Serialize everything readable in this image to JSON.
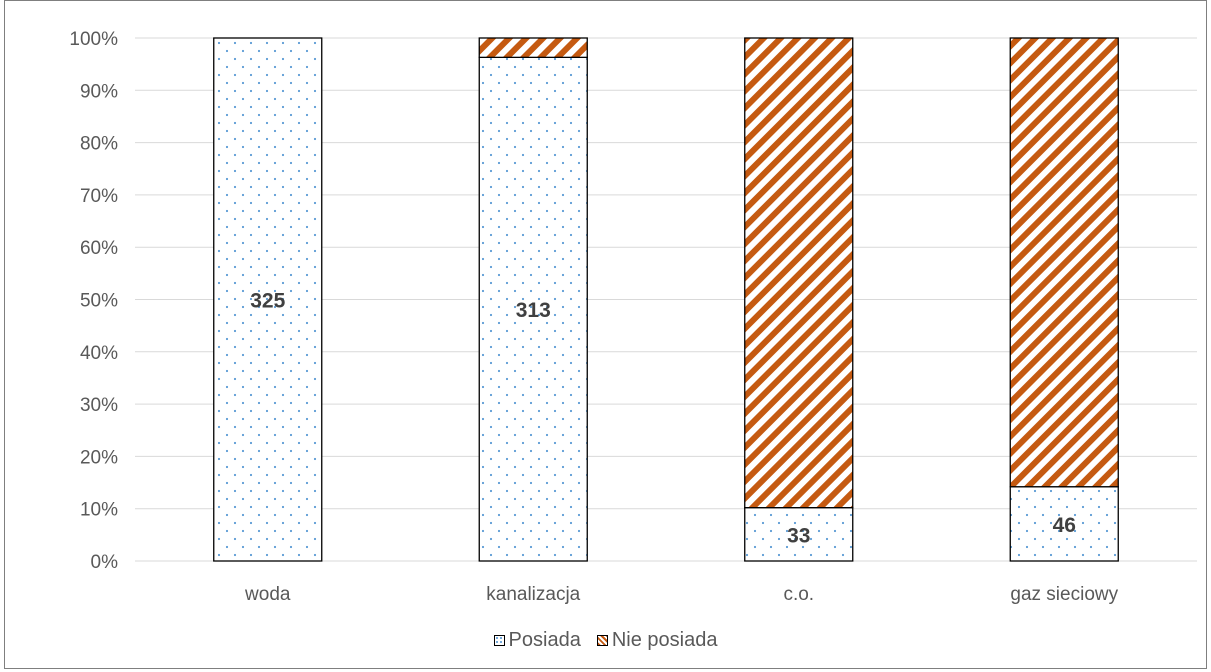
{
  "chart_data": {
    "type": "bar",
    "stacked": "percent",
    "categories": [
      "woda",
      "kanalizacja",
      "c.o.",
      "gaz sieciowy"
    ],
    "series": [
      {
        "name": "Posiada",
        "values": [
          325,
          313,
          33,
          46
        ],
        "share_pct": [
          100,
          96.3,
          10.2,
          14.2
        ],
        "data_labels": [
          "325",
          "313",
          "33",
          "46"
        ],
        "pattern": "dotted",
        "color": "#5b9bd5"
      },
      {
        "name": "Nie posiada",
        "share_pct": [
          0,
          3.7,
          89.8,
          85.8
        ],
        "pattern": "diagonal-stripes",
        "color": "#c55a11"
      }
    ],
    "y_ticks": [
      "0%",
      "10%",
      "20%",
      "30%",
      "40%",
      "50%",
      "60%",
      "70%",
      "80%",
      "90%",
      "100%"
    ],
    "ylim": [
      0,
      100
    ],
    "grid": true,
    "legend_position": "bottom",
    "title": "",
    "xlabel": "",
    "ylabel": ""
  }
}
